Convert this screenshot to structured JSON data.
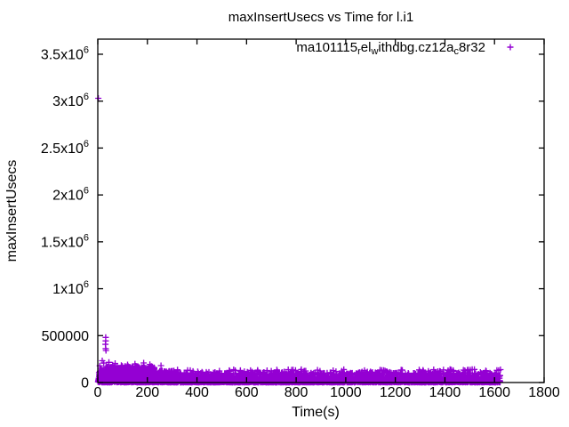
{
  "canvas": {
    "background": "#ffffff"
  },
  "chart_data": {
    "type": "scatter",
    "title": "maxInsertUsecs vs Time for l.i1",
    "xlabel": "Time(s)",
    "ylabel": "maxInsertUsecs",
    "xlim": [
      0,
      1800
    ],
    "ylim": [
      0,
      3661000
    ],
    "grid": false,
    "xticks": [
      0,
      200,
      400,
      600,
      800,
      1000,
      1200,
      1400,
      1600,
      1800
    ],
    "yticks": [
      {
        "value": 0,
        "label": "0"
      },
      {
        "value": 500000,
        "label": "500000"
      },
      {
        "value": 1000000,
        "label": "1x10^6"
      },
      {
        "value": 1500000,
        "label": "1.5x10^6"
      },
      {
        "value": 2000000,
        "label": "2x10^6"
      },
      {
        "value": 2500000,
        "label": "2.5x10^6"
      },
      {
        "value": 3000000,
        "label": "3x10^6"
      },
      {
        "value": 3500000,
        "label": "3.5x10^6"
      }
    ],
    "legend": {
      "position": "top-right-inside"
    },
    "series": [
      {
        "name": "ma101115_rel_withdbg.cz12a_c8r32",
        "label_segments": [
          {
            "text": "ma101115"
          },
          {
            "text": "r",
            "sub": true
          },
          {
            "text": "el"
          },
          {
            "text": "w",
            "sub": true
          },
          {
            "text": "ithdbg.cz12a"
          },
          {
            "text": "c",
            "sub": true
          },
          {
            "text": "8r32"
          }
        ],
        "color": "#9400d3",
        "marker": "plus",
        "x_data_max": 1624,
        "outlier_points": [
          [
            2,
            3030000
          ],
          [
            32,
            481000
          ],
          [
            32,
            444000
          ],
          [
            31,
            407000
          ],
          [
            32,
            361000
          ],
          [
            33,
            341000
          ],
          [
            18,
            232000
          ],
          [
            24,
            208000
          ],
          [
            45,
            215000
          ],
          [
            70,
            204000
          ],
          [
            120,
            190000
          ],
          [
            150,
            198000
          ],
          [
            185,
            209000
          ],
          [
            210,
            193000
          ],
          [
            255,
            180000
          ],
          [
            8,
            178000
          ],
          [
            12,
            152000
          ],
          [
            60,
            188000
          ],
          [
            95,
            182000
          ]
        ],
        "band_segments": [
          {
            "x0": 1,
            "x1": 25,
            "n": 45,
            "vmin": 2000,
            "vmax": 150000,
            "pow": 1.6
          },
          {
            "x0": 25,
            "x1": 230,
            "n": 620,
            "vmin": 3000,
            "vmax": 165000,
            "pow": 1.7
          },
          {
            "x0": 230,
            "x1": 300,
            "n": 140,
            "vmin": 3000,
            "vmax": 125000,
            "pow": 1.8
          },
          {
            "x0": 300,
            "x1": 1624,
            "n": 2300,
            "vmin": 3000,
            "vmax": 105000,
            "pow": 1.9
          },
          {
            "x0": 1,
            "x1": 1624,
            "n": 1400,
            "vmin": 500,
            "vmax": 22000,
            "pow": 1.0
          },
          {
            "x0": 300,
            "x1": 1624,
            "n": 150,
            "vmin": 90000,
            "vmax": 140000,
            "pow": 1.0
          },
          {
            "x0": 25,
            "x1": 230,
            "n": 45,
            "vmin": 140000,
            "vmax": 178000,
            "pow": 1.0
          }
        ]
      }
    ]
  }
}
